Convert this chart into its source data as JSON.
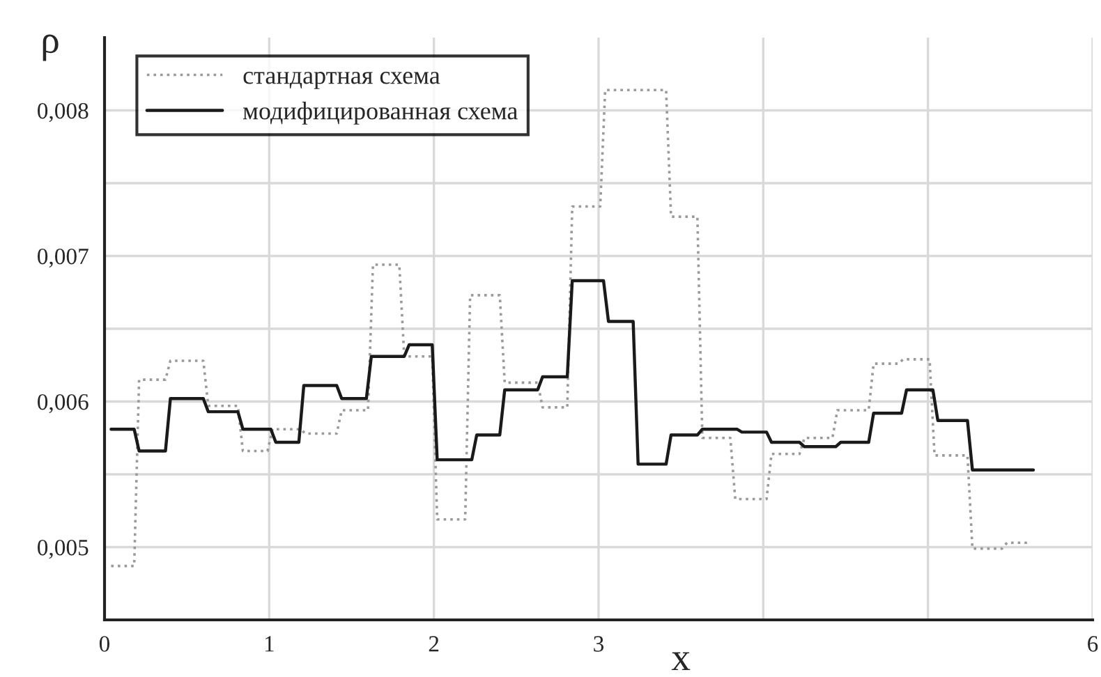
{
  "chart_data": {
    "type": "line",
    "xlabel": "x",
    "ylabel": "ρ",
    "xlim": [
      0,
      6
    ],
    "ylim": [
      0.0045,
      0.0085
    ],
    "xticks": [
      0,
      1,
      2,
      3,
      {
        "value": 4,
        "label": null
      },
      {
        "value": 5,
        "label": null
      },
      6
    ],
    "yticks": [
      {
        "value": 0.0045,
        "label": null
      },
      {
        "value": 0.005,
        "label": "0,005"
      },
      {
        "value": 0.0055,
        "label": null
      },
      {
        "value": 0.006,
        "label": "0,006"
      },
      {
        "value": 0.0065,
        "label": null
      },
      {
        "value": 0.007,
        "label": "0,007"
      },
      {
        "value": 0.0075,
        "label": null
      },
      {
        "value": 0.008,
        "label": "0,008"
      }
    ],
    "grid": true,
    "legend": "top left",
    "marker": "none",
    "series": [
      {
        "name": "стандартная схема",
        "color": "#9a9a9a",
        "line_style": "dotted",
        "x": [
          0.04,
          0.18,
          0.21,
          0.37,
          0.4,
          0.6,
          0.63,
          0.81,
          0.84,
          0.99,
          1.02,
          1.19,
          1.22,
          1.41,
          1.44,
          1.6,
          1.63,
          1.79,
          1.82,
          1.99,
          2.02,
          2.19,
          2.22,
          2.4,
          2.43,
          2.63,
          2.66,
          2.81,
          2.84,
          3.01,
          3.04,
          3.41,
          3.44,
          3.6,
          3.63,
          3.8,
          3.83,
          4.02,
          4.05,
          4.22,
          4.25,
          4.42,
          4.45,
          4.64,
          4.67,
          4.82,
          4.85,
          5.01,
          5.04,
          5.24,
          5.27,
          5.45,
          5.48,
          5.61
        ],
        "values": [
          0.00487,
          0.00487,
          0.00615,
          0.00615,
          0.00628,
          0.00628,
          0.00597,
          0.00597,
          0.00566,
          0.00566,
          0.00581,
          0.00581,
          0.00578,
          0.00578,
          0.00594,
          0.00594,
          0.00694,
          0.00694,
          0.00631,
          0.00631,
          0.00519,
          0.00519,
          0.00673,
          0.00673,
          0.00613,
          0.00613,
          0.00596,
          0.00596,
          0.00734,
          0.00734,
          0.00814,
          0.00814,
          0.00727,
          0.00727,
          0.00575,
          0.00575,
          0.00533,
          0.00533,
          0.00564,
          0.00564,
          0.00575,
          0.00575,
          0.00594,
          0.00594,
          0.00626,
          0.00626,
          0.00629,
          0.00629,
          0.00563,
          0.00563,
          0.00499,
          0.00499,
          0.00503,
          0.00503
        ]
      },
      {
        "name": "модифицированная схема",
        "color": "#1a1a1a",
        "line_style": "solid",
        "x": [
          0.04,
          0.18,
          0.21,
          0.37,
          0.4,
          0.6,
          0.63,
          0.81,
          0.84,
          1.01,
          1.04,
          1.18,
          1.21,
          1.41,
          1.44,
          1.59,
          1.62,
          1.82,
          1.85,
          1.99,
          2.02,
          2.23,
          2.26,
          2.4,
          2.43,
          2.63,
          2.66,
          2.81,
          2.84,
          3.03,
          3.06,
          3.21,
          3.24,
          3.41,
          3.44,
          3.6,
          3.63,
          3.84,
          3.87,
          4.02,
          4.05,
          4.22,
          4.25,
          4.44,
          4.47,
          4.64,
          4.67,
          4.84,
          4.87,
          5.03,
          5.06,
          5.24,
          5.27,
          5.64
        ],
        "values": [
          0.00581,
          0.00581,
          0.00566,
          0.00566,
          0.00602,
          0.00602,
          0.00593,
          0.00593,
          0.00581,
          0.00581,
          0.00572,
          0.00572,
          0.00611,
          0.00611,
          0.00602,
          0.00602,
          0.00631,
          0.00631,
          0.00639,
          0.00639,
          0.0056,
          0.0056,
          0.00577,
          0.00577,
          0.00608,
          0.00608,
          0.00617,
          0.00617,
          0.00683,
          0.00683,
          0.00655,
          0.00655,
          0.00557,
          0.00557,
          0.00577,
          0.00577,
          0.00581,
          0.00581,
          0.00579,
          0.00579,
          0.00572,
          0.00572,
          0.00569,
          0.00569,
          0.00572,
          0.00572,
          0.00592,
          0.00592,
          0.00608,
          0.00608,
          0.00587,
          0.00587,
          0.00553,
          0.00553
        ]
      }
    ]
  }
}
